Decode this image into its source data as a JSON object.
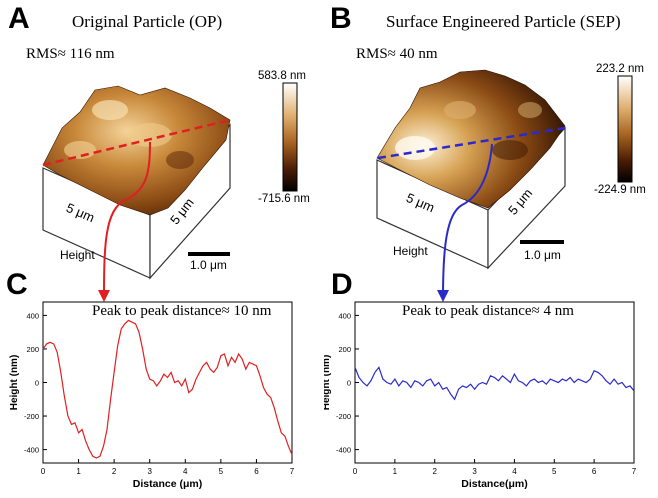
{
  "panels": {
    "A": {
      "letter": "A",
      "title": "Original Particle  (OP)",
      "rms": "RMS≈ 116 nm",
      "scale_max": "583.8 nm",
      "scale_min": "-715.6 nm",
      "dim_left": "5 μm",
      "dim_right": "5 μm",
      "height_label": "Height",
      "scale_bar": "1.0 μm",
      "colors": {
        "line": "#e02020",
        "cmap_top": "#ffffff",
        "cmap_mid": "#b8772c",
        "cmap_bot": "#000000"
      }
    },
    "B": {
      "letter": "B",
      "title": "Surface Engineered  Particle (SEP)",
      "rms": "RMS≈ 40 nm",
      "scale_max": "223.2 nm",
      "scale_min": "-224.9 nm",
      "dim_left": "5 μm",
      "dim_right": "5 μm",
      "height_label": "Height",
      "scale_bar": "1.0 μm",
      "colors": {
        "line": "#2a2acc"
      }
    },
    "C": {
      "letter": "C",
      "annotation": "Peak to peak distance≈ 10 nm"
    },
    "D": {
      "letter": "D",
      "annotation": "Peak to peak distance≈ 4 nm"
    }
  },
  "chart_data": [
    {
      "type": "line",
      "panel": "C",
      "xlabel": "Distance (μm)",
      "ylabel": "Height (nm)",
      "xlim": [
        0,
        7
      ],
      "ylim": [
        -480,
        480
      ],
      "xticks": [
        "0",
        "1",
        "2",
        "3",
        "4",
        "5",
        "6",
        "7"
      ],
      "yticks": [
        "-400",
        "-200",
        "0",
        "200",
        "400"
      ],
      "series": [
        {
          "name": "OP",
          "color": "#e02020",
          "x": [
            0,
            0.1,
            0.2,
            0.3,
            0.4,
            0.5,
            0.6,
            0.7,
            0.8,
            0.9,
            1.0,
            1.1,
            1.2,
            1.3,
            1.4,
            1.5,
            1.6,
            1.7,
            1.8,
            1.9,
            2.0,
            2.1,
            2.2,
            2.3,
            2.4,
            2.5,
            2.6,
            2.7,
            2.8,
            2.9,
            3.0,
            3.1,
            3.2,
            3.3,
            3.4,
            3.5,
            3.6,
            3.7,
            3.8,
            3.9,
            4.0,
            4.1,
            4.2,
            4.3,
            4.4,
            4.5,
            4.6,
            4.7,
            4.8,
            4.9,
            5.0,
            5.1,
            5.2,
            5.3,
            5.4,
            5.5,
            5.6,
            5.7,
            5.8,
            5.9,
            6.0,
            6.1,
            6.2,
            6.3,
            6.4,
            6.5,
            6.6,
            6.7,
            6.8,
            6.9,
            7.0
          ],
          "values": [
            200,
            230,
            240,
            230,
            180,
            60,
            -80,
            -200,
            -250,
            -240,
            -300,
            -280,
            -350,
            -400,
            -440,
            -450,
            -440,
            -380,
            -280,
            -100,
            60,
            220,
            320,
            350,
            370,
            360,
            350,
            300,
            200,
            80,
            20,
            10,
            -20,
            10,
            50,
            30,
            60,
            0,
            10,
            -20,
            20,
            -60,
            -40,
            20,
            60,
            100,
            120,
            80,
            60,
            90,
            160,
            170,
            100,
            150,
            120,
            170,
            140,
            80,
            120,
            110,
            100,
            40,
            -30,
            -70,
            -90,
            -150,
            -230,
            -300,
            -320,
            -380,
            -430
          ]
        }
      ]
    },
    {
      "type": "line",
      "panel": "D",
      "xlabel": "Distance(μm)",
      "ylabel": "Height (nm)",
      "xlim": [
        0,
        7
      ],
      "ylim": [
        -480,
        480
      ],
      "xticks": [
        "0",
        "1",
        "2",
        "3",
        "4",
        "5",
        "6",
        "7"
      ],
      "yticks": [
        "-400",
        "-200",
        "0",
        "200",
        "400"
      ],
      "series": [
        {
          "name": "SEP",
          "color": "#2a2acc",
          "x": [
            0,
            0.1,
            0.2,
            0.3,
            0.4,
            0.5,
            0.6,
            0.7,
            0.8,
            0.9,
            1.0,
            1.1,
            1.2,
            1.3,
            1.4,
            1.5,
            1.6,
            1.7,
            1.8,
            1.9,
            2.0,
            2.1,
            2.2,
            2.3,
            2.4,
            2.5,
            2.6,
            2.7,
            2.8,
            2.9,
            3.0,
            3.1,
            3.2,
            3.3,
            3.4,
            3.5,
            3.6,
            3.7,
            3.8,
            3.9,
            4.0,
            4.1,
            4.2,
            4.3,
            4.4,
            4.5,
            4.6,
            4.7,
            4.8,
            4.9,
            5.0,
            5.1,
            5.2,
            5.3,
            5.4,
            5.5,
            5.6,
            5.7,
            5.8,
            5.9,
            6.0,
            6.1,
            6.2,
            6.3,
            6.4,
            6.5,
            6.6,
            6.7,
            6.8,
            6.9,
            7.0
          ],
          "values": [
            90,
            30,
            0,
            -20,
            10,
            60,
            90,
            20,
            0,
            -10,
            20,
            -20,
            10,
            0,
            -30,
            10,
            0,
            -20,
            10,
            20,
            -20,
            0,
            -40,
            -30,
            -70,
            -100,
            -40,
            -20,
            -30,
            -10,
            -40,
            -10,
            0,
            -10,
            40,
            30,
            10,
            40,
            20,
            0,
            50,
            10,
            0,
            -20,
            10,
            20,
            0,
            10,
            -10,
            20,
            10,
            0,
            20,
            10,
            30,
            0,
            20,
            10,
            0,
            20,
            70,
            60,
            40,
            10,
            -10,
            20,
            -10,
            0,
            -30,
            -20,
            -50
          ]
        }
      ]
    }
  ]
}
